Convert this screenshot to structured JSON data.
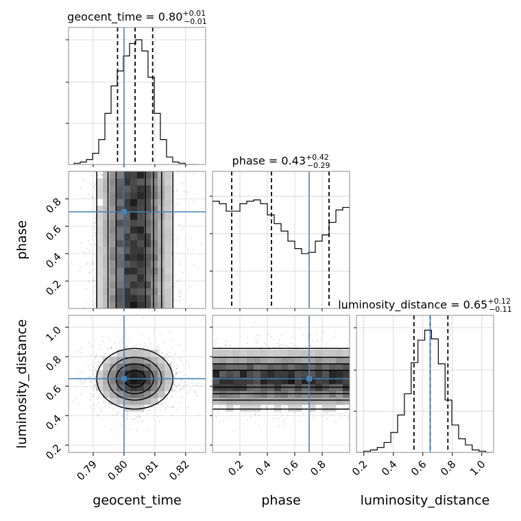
{
  "chart_data": {
    "type": "corner",
    "parameters": [
      "geocent_time",
      "phase",
      "luminosity_distance"
    ],
    "truths": {
      "geocent_time": 0.8,
      "phase": 0.705,
      "luminosity_distance": 0.65
    },
    "truth_color": "#4682b4",
    "axes": {
      "geocent_time": {
        "range": [
          0.782,
          0.8265
        ],
        "ticks": [
          0.79,
          0.8,
          0.81,
          0.82
        ],
        "tick_labels": [
          "0.79",
          "0.80",
          "0.81",
          "0.82"
        ]
      },
      "phase": {
        "range": [
          0.0,
          1.0
        ],
        "ticks": [
          0.2,
          0.4,
          0.6,
          0.8
        ],
        "tick_labels": [
          "0.2",
          "0.4",
          "0.6",
          "0.8"
        ]
      },
      "luminosity_distance": {
        "range": [
          0.15,
          1.08
        ],
        "ticks": [
          0.2,
          0.4,
          0.6,
          0.8,
          1.0
        ],
        "tick_labels": [
          "0.2",
          "0.4",
          "0.6",
          "0.8",
          "1.0"
        ]
      }
    },
    "titles": {
      "geocent_time": {
        "text": "geocent_time = 0.80",
        "plus": "+0.01",
        "minus": "−0.01"
      },
      "phase": {
        "text": "phase = 0.43",
        "plus": "+0.42",
        "minus": "−0.29"
      },
      "luminosity_distance": {
        "text": "luminosity_distance = 0.65",
        "plus": "+0.12",
        "minus": "−0.11"
      }
    },
    "quantile_lines": {
      "geocent_time": [
        0.7979,
        0.8036,
        0.8093
      ],
      "phase": [
        0.14,
        0.43,
        0.85
      ],
      "luminosity_distance": [
        0.54,
        0.65,
        0.77
      ]
    },
    "histograms": {
      "geocent_time": {
        "edges": [
          0.7838,
          0.7858,
          0.7878,
          0.7898,
          0.7918,
          0.7938,
          0.7958,
          0.7978,
          0.7998,
          0.8018,
          0.8038,
          0.8058,
          0.8078,
          0.8098,
          0.8118,
          0.8138,
          0.8158,
          0.8178,
          0.8198,
          0.8218,
          0.8238
        ],
        "counts": [
          0.01,
          0.02,
          0.04,
          0.09,
          0.2,
          0.41,
          0.63,
          0.75,
          0.87,
          0.97,
          1.0,
          0.91,
          0.7,
          0.41,
          0.2,
          0.06,
          0.02,
          0.01,
          0.0,
          0.0
        ]
      },
      "phase": {
        "edges": [
          0.0,
          0.05,
          0.1,
          0.15,
          0.2,
          0.25,
          0.3,
          0.35,
          0.4,
          0.45,
          0.5,
          0.55,
          0.6,
          0.65,
          0.7,
          0.75,
          0.8,
          0.85,
          0.9,
          0.95,
          1.0
        ],
        "counts": [
          0.86,
          0.84,
          0.78,
          0.78,
          0.84,
          0.86,
          0.87,
          0.84,
          0.75,
          0.68,
          0.62,
          0.54,
          0.48,
          0.44,
          0.45,
          0.54,
          0.59,
          0.69,
          0.79,
          0.81
        ]
      },
      "luminosity_distance": {
        "edges": [
          0.153,
          0.199,
          0.245,
          0.291,
          0.337,
          0.383,
          0.429,
          0.475,
          0.521,
          0.567,
          0.613,
          0.659,
          0.705,
          0.751,
          0.797,
          0.843,
          0.889,
          0.935,
          0.981,
          1.027,
          1.073
        ],
        "counts": [
          0.0,
          0.01,
          0.02,
          0.04,
          0.08,
          0.16,
          0.3,
          0.47,
          0.72,
          0.9,
          0.98,
          0.91,
          0.71,
          0.42,
          0.22,
          0.11,
          0.06,
          0.02,
          0.01,
          0.0
        ]
      }
    },
    "histogram_grid": {
      "geocent_time": [
        0.33,
        0.66,
        1.0
      ],
      "phase": [
        0.3,
        0.6,
        0.9
      ],
      "luminosity_distance": [
        0.33,
        0.66,
        1.0
      ]
    },
    "contour_levels": [
      0.12,
      0.35,
      0.6,
      0.85
    ],
    "grid": true
  }
}
